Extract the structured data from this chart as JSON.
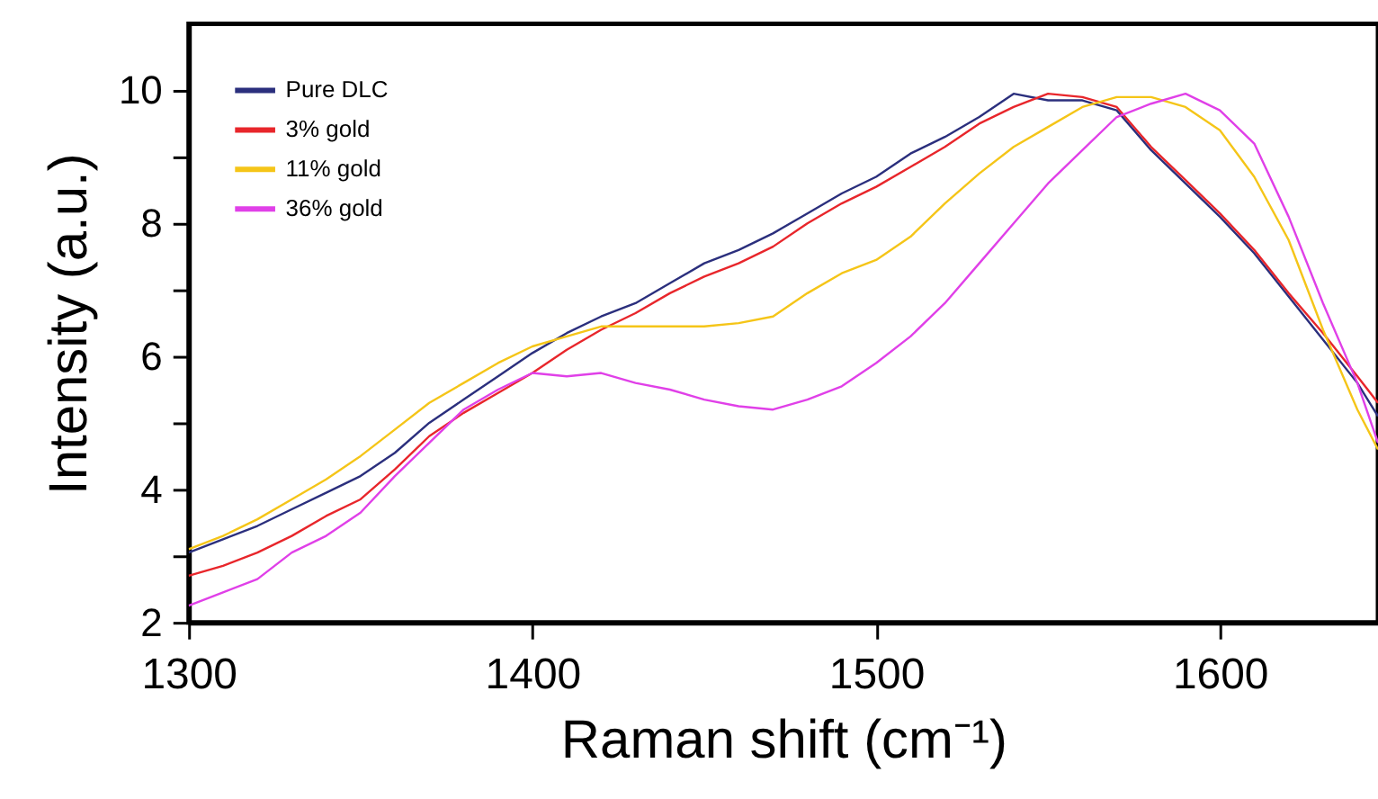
{
  "chart_data": {
    "type": "line",
    "xlabel": "Raman shift (cm⁻¹)",
    "ylabel": "Intensity (a.u.)",
    "x": [
      1300,
      1310,
      1320,
      1330,
      1340,
      1350,
      1360,
      1370,
      1380,
      1390,
      1400,
      1410,
      1420,
      1430,
      1440,
      1450,
      1460,
      1470,
      1480,
      1490,
      1500,
      1510,
      1520,
      1530,
      1540,
      1550,
      1560,
      1570,
      1580,
      1590,
      1600,
      1610,
      1620,
      1630,
      1640,
      1646
    ],
    "series": [
      {
        "name": "Pure DLC",
        "color": "#2b2f7d",
        "values": [
          3.05,
          3.25,
          3.45,
          3.7,
          3.95,
          4.2,
          4.55,
          5.0,
          5.35,
          5.7,
          6.05,
          6.35,
          6.6,
          6.8,
          7.1,
          7.4,
          7.6,
          7.85,
          8.15,
          8.45,
          8.7,
          9.05,
          9.3,
          9.6,
          9.95,
          9.85,
          9.85,
          9.7,
          9.1,
          8.6,
          8.1,
          7.55,
          6.9,
          6.25,
          5.6,
          5.1
        ]
      },
      {
        "name": "3% gold",
        "color": "#e8262b",
        "values": [
          2.7,
          2.85,
          3.05,
          3.3,
          3.6,
          3.85,
          4.3,
          4.8,
          5.15,
          5.45,
          5.75,
          6.1,
          6.4,
          6.65,
          6.95,
          7.2,
          7.4,
          7.65,
          8.0,
          8.3,
          8.55,
          8.85,
          9.15,
          9.5,
          9.75,
          9.95,
          9.9,
          9.75,
          9.15,
          8.65,
          8.15,
          7.6,
          6.95,
          6.35,
          5.7,
          5.3
        ]
      },
      {
        "name": "11% gold",
        "color": "#f5c518",
        "values": [
          3.1,
          3.3,
          3.55,
          3.85,
          4.15,
          4.5,
          4.9,
          5.3,
          5.6,
          5.9,
          6.15,
          6.3,
          6.45,
          6.45,
          6.45,
          6.45,
          6.5,
          6.6,
          6.95,
          7.25,
          7.45,
          7.8,
          8.3,
          8.75,
          9.15,
          9.45,
          9.75,
          9.9,
          9.9,
          9.75,
          9.4,
          8.7,
          7.75,
          6.4,
          5.2,
          4.6
        ]
      },
      {
        "name": "36% gold",
        "color": "#e040e8",
        "values": [
          2.25,
          2.45,
          2.65,
          3.05,
          3.3,
          3.65,
          4.2,
          4.7,
          5.2,
          5.5,
          5.75,
          5.7,
          5.75,
          5.6,
          5.5,
          5.35,
          5.25,
          5.2,
          5.35,
          5.55,
          5.9,
          6.3,
          6.8,
          7.4,
          8.0,
          8.6,
          9.1,
          9.6,
          9.8,
          9.95,
          9.7,
          9.2,
          8.1,
          6.8,
          5.6,
          4.7
        ]
      }
    ],
    "xlim": [
      1300,
      1646
    ],
    "xticks": [
      1300,
      1400,
      1500,
      1600
    ],
    "ylim": [
      2,
      11
    ],
    "yticks": [
      2,
      {
        "value": 3,
        "label": null
      },
      4,
      {
        "value": 5,
        "label": null
      },
      6,
      {
        "value": 7,
        "label": null
      },
      8,
      {
        "value": 9,
        "label": null
      },
      10
    ],
    "grid": false,
    "legend": "top left",
    "marker": "none",
    "line_style": "solid"
  }
}
